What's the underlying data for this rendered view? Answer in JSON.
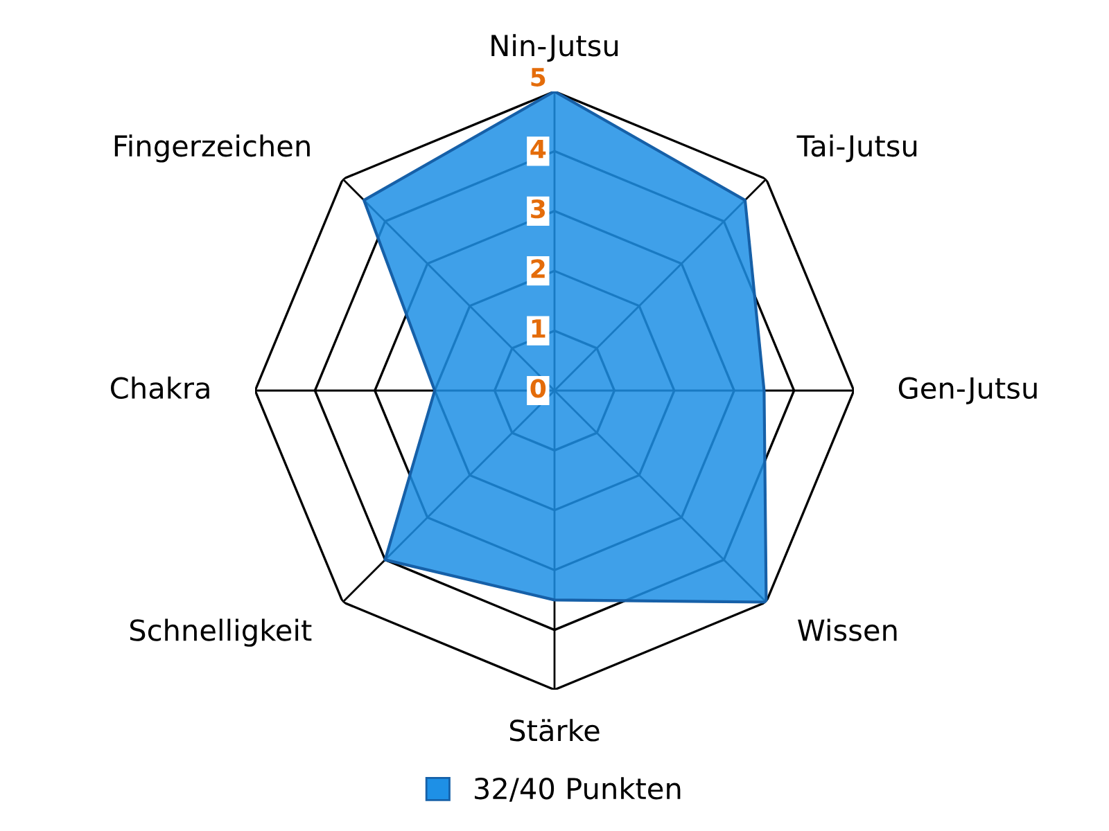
{
  "chart_data": {
    "type": "radar",
    "categories": [
      "Nin-Jutsu",
      "Tai-Jutsu",
      "Gen-Jutsu",
      "Wissen",
      "Stärke",
      "Schnelligkeit",
      "Chakra",
      "Fingerzeichen"
    ],
    "series": [
      {
        "name": "32/40 Punkten",
        "color": "#1e90e6",
        "values": [
          5,
          4.5,
          3.5,
          5,
          3.5,
          4,
          2,
          4.5
        ]
      }
    ],
    "ylim": [
      0,
      5
    ],
    "yticks": [
      0,
      1,
      2,
      3,
      4,
      5
    ],
    "grid": true,
    "legend": "bottom"
  }
}
